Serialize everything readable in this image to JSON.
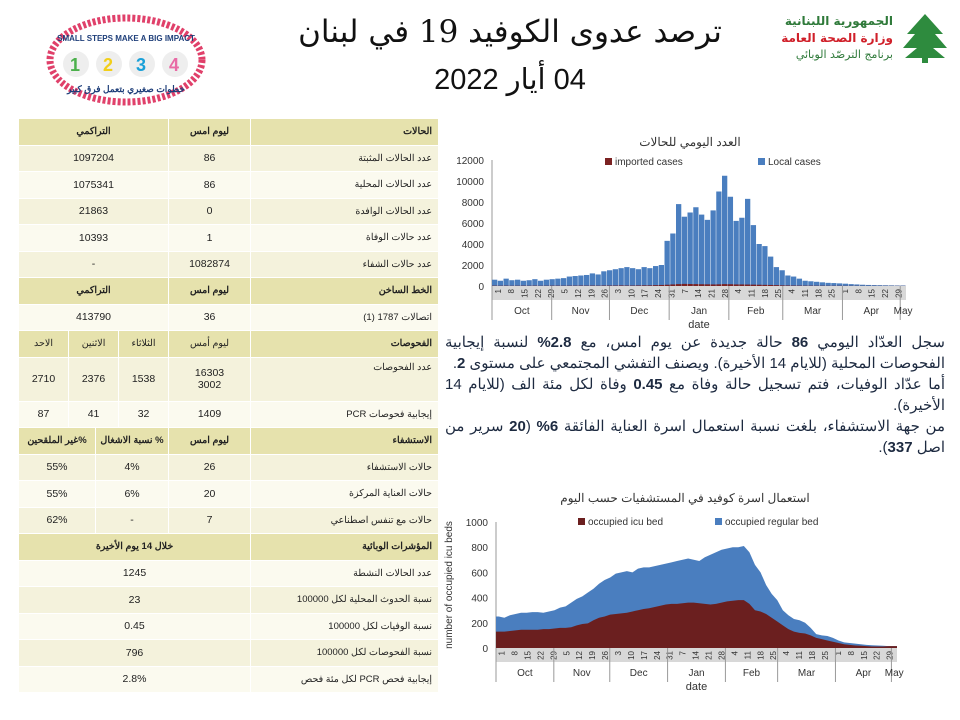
{
  "header": {
    "title": "ترصد عدوى الكوفيد 19 في لبنان",
    "date": "04 أيار 2022",
    "logo_left": {
      "text_en": "SMALL STEPS MAKE A BIG IMPACT",
      "text_ar": "خطوات صغيري بتعمل فرق كبير",
      "numbers": [
        "1",
        "2",
        "3",
        "4"
      ]
    },
    "logo_right": {
      "line1": "الجمهورية اللبنانية",
      "line2": "وزارة الصحة العامة",
      "line3": "برنامج الترصّد الوبائي"
    }
  },
  "table": {
    "cases": {
      "header": [
        "الحالات",
        "ليوم امس",
        "التراكمي"
      ],
      "rows": [
        {
          "label": "عدد الحالات المثبتة",
          "yesterday": "86",
          "total": "1097204"
        },
        {
          "label": "عدد الحالات المحلية",
          "yesterday": "86",
          "total": "1075341"
        },
        {
          "label": "عدد الحالات الوافدة",
          "yesterday": "0",
          "total": "21863"
        },
        {
          "label": "عدد حالات الوفاة",
          "yesterday": "1",
          "total": "10393"
        },
        {
          "label": "عدد حالات الشفاء",
          "yesterday": "1082874",
          "total": "-"
        }
      ]
    },
    "hotline": {
      "header": [
        "الخط الساخن",
        "ليوم امس",
        "التراكمي"
      ],
      "row": {
        "label": "اتصالات 1787 (1)",
        "yesterday": "36",
        "total": "413790"
      }
    },
    "tests": {
      "header": [
        "الفحوصات",
        "ليوم أمس",
        "الثلاثاء",
        "الاثنين",
        "الاحد"
      ],
      "rows": [
        {
          "label": "عدد الفحوصات",
          "yesterday": [
            "16303",
            "3002"
          ],
          "tue": "1538",
          "mon": "2376",
          "sun": "2710"
        },
        {
          "label": "إيجابية فحوصات PCR",
          "yesterday": [
            "1409"
          ],
          "tue": "32",
          "mon": "41",
          "sun": "87"
        }
      ]
    },
    "hospital": {
      "header": [
        "الاستشفاء",
        "ليوم امس",
        "% نسبة الاشغال",
        "%غير الملقحين"
      ],
      "rows": [
        {
          "label": "حالات الاستشفاء",
          "yesterday": "26",
          "occupancy": "4%",
          "unvaccinated": "55%"
        },
        {
          "label": "حالات العناية المركزة",
          "yesterday": "20",
          "occupancy": "6%",
          "unvaccinated": "55%"
        },
        {
          "label": "حالات مع تنفس اصطناعي",
          "yesterday": "7",
          "occupancy": "-",
          "unvaccinated": "62%"
        }
      ]
    },
    "indicators": {
      "header": [
        "المؤشرات الوبائية",
        "خلال 14 يوم الأخيرة"
      ],
      "rows": [
        {
          "label": "عدد الحالات النشطة",
          "value": "1245"
        },
        {
          "label": "نسبة الحدوث المحلية لكل 100000",
          "value": "23"
        },
        {
          "label": "نسبة الوفيات لكل 100000",
          "value": "0.45"
        },
        {
          "label": "نسبة الفحوصات لكل 100000",
          "value": "796"
        },
        {
          "label": "إيجابية فحص PCR لكل مئة فحص",
          "value": "2.8%"
        }
      ]
    }
  },
  "summary": {
    "p1": [
      "سجل العدّاد اليومي ",
      "86",
      " حالة جديدة عن يوم امس، مع ",
      "2.8%",
      " لنسبة إيجابية الفحوصات المحلية (للايام 14 الأخيرة). ويصنف التفشي المجتمعي على مستوى ",
      "2",
      "."
    ],
    "p2": [
      "أما عدّاد الوفيات، فتم تسجيل حالة وفاة مع ",
      "0.45",
      " وفاة  لكل مئة الف (للايام 14 الأخيرة)."
    ],
    "p3": [
      "من جهة الاستشفاء، بلغت نسبة استعمال اسرة العناية الفائقة ",
      "6%",
      " (",
      "20",
      " سرير من اصل ",
      "337",
      ")."
    ]
  },
  "chart_data": [
    {
      "type": "bar",
      "title": "العدد اليومي للحالات",
      "xlabel": "date",
      "ylabel": "",
      "ylim": [
        0,
        12000
      ],
      "yticks": [
        "0",
        "2000",
        "4000",
        "6000",
        "8000",
        "10000",
        "12000"
      ],
      "months": [
        "Oct",
        "Nov",
        "Dec",
        "Jan",
        "Feb",
        "Mar",
        "Apr",
        "May"
      ],
      "day_ticks": [
        "1",
        "8",
        "15",
        "22",
        "29",
        "5",
        "12",
        "19",
        "26",
        "3",
        "10",
        "17",
        "24",
        "31",
        "7",
        "14",
        "21",
        "28",
        "4",
        "11",
        "18",
        "25",
        "4",
        "11",
        "18",
        "25",
        "1",
        "8",
        "15",
        "22",
        "29"
      ],
      "x_start": "2021-10-01",
      "x_step_days": 3,
      "legend_position": "top",
      "series": [
        {
          "name": "imported cases",
          "color": "#7b2222",
          "values": [
            30,
            25,
            30,
            20,
            25,
            30,
            25,
            30,
            20,
            25,
            30,
            30,
            25,
            30,
            30,
            35,
            30,
            35,
            30,
            40,
            40,
            40,
            50,
            40,
            40,
            50,
            60,
            60,
            80,
            100,
            120,
            150,
            180,
            200,
            190,
            180,
            170,
            160,
            150,
            160,
            180,
            170,
            150,
            150,
            140,
            130,
            120,
            110,
            100,
            80,
            60,
            50,
            40,
            35,
            30,
            30,
            25,
            25,
            20,
            20,
            20,
            15,
            15,
            15,
            10,
            10,
            10,
            10,
            10,
            10,
            10,
            10
          ]
        },
        {
          "name": "Local cases",
          "color": "#4a7ebf",
          "values": [
            600,
            500,
            700,
            550,
            600,
            500,
            550,
            650,
            500,
            600,
            650,
            700,
            750,
            900,
            950,
            1000,
            1050,
            1200,
            1100,
            1400,
            1500,
            1600,
            1700,
            1800,
            1700,
            1600,
            1800,
            1700,
            1900,
            2000,
            4300,
            5000,
            7800,
            6600,
            7000,
            7500,
            6800,
            6300,
            7200,
            9000,
            10500,
            8500,
            6200,
            6500,
            8300,
            5800,
            4000,
            3800,
            2800,
            1800,
            1500,
            1000,
            900,
            700,
            500,
            450,
            400,
            350,
            300,
            280,
            250,
            220,
            180,
            150,
            120,
            100,
            90,
            80,
            70,
            60,
            50,
            50
          ]
        }
      ]
    },
    {
      "type": "area",
      "title": "استعمال اسرة كوفيد في المستشفيات حسب اليوم",
      "xlabel": "date",
      "ylabel": "number of occupied icu beds",
      "ylim": [
        0,
        1000
      ],
      "yticks": [
        "0",
        "200",
        "400",
        "600",
        "800",
        "1000"
      ],
      "months": [
        "Oct",
        "Nov",
        "Dec",
        "Jan",
        "Feb",
        "Mar",
        "Apr",
        "May"
      ],
      "day_ticks": [
        "1",
        "8",
        "15",
        "22",
        "29",
        "5",
        "12",
        "19",
        "26",
        "3",
        "10",
        "17",
        "24",
        "31",
        "7",
        "14",
        "21",
        "28",
        "4",
        "11",
        "18",
        "25",
        "4",
        "11",
        "18",
        "25",
        "1",
        "8",
        "15",
        "22",
        "29"
      ],
      "x_start": "2021-10-01",
      "x_step_days": 3,
      "stacked": true,
      "legend_position": "top",
      "series": [
        {
          "name": "occupied icu bed",
          "color": "#6b1f1f",
          "values": [
            130,
            130,
            135,
            140,
            145,
            145,
            145,
            145,
            150,
            150,
            155,
            160,
            160,
            165,
            180,
            190,
            195,
            220,
            240,
            250,
            265,
            270,
            275,
            280,
            290,
            300,
            310,
            315,
            325,
            335,
            345,
            350,
            350,
            355,
            360,
            360,
            355,
            350,
            345,
            350,
            360,
            370,
            375,
            380,
            380,
            350,
            300,
            290,
            270,
            240,
            210,
            180,
            150,
            130,
            120,
            115,
            100,
            80,
            70,
            60,
            50,
            40,
            30,
            25,
            20,
            18,
            15,
            12,
            12,
            12,
            15,
            15
          ]
        },
        {
          "name": "occupied regular bed",
          "color": "#4a7ebf",
          "values": [
            120,
            110,
            125,
            130,
            135,
            135,
            140,
            140,
            130,
            140,
            145,
            160,
            170,
            195,
            210,
            220,
            245,
            250,
            270,
            290,
            295,
            320,
            325,
            330,
            310,
            330,
            330,
            325,
            325,
            325,
            325,
            330,
            340,
            345,
            350,
            340,
            335,
            370,
            395,
            410,
            420,
            420,
            425,
            420,
            430,
            410,
            360,
            310,
            230,
            190,
            170,
            120,
            110,
            100,
            100,
            85,
            60,
            30,
            30,
            35,
            30,
            20,
            15,
            15,
            15,
            12,
            10,
            10,
            8,
            6,
            0,
            0
          ]
        }
      ]
    }
  ]
}
